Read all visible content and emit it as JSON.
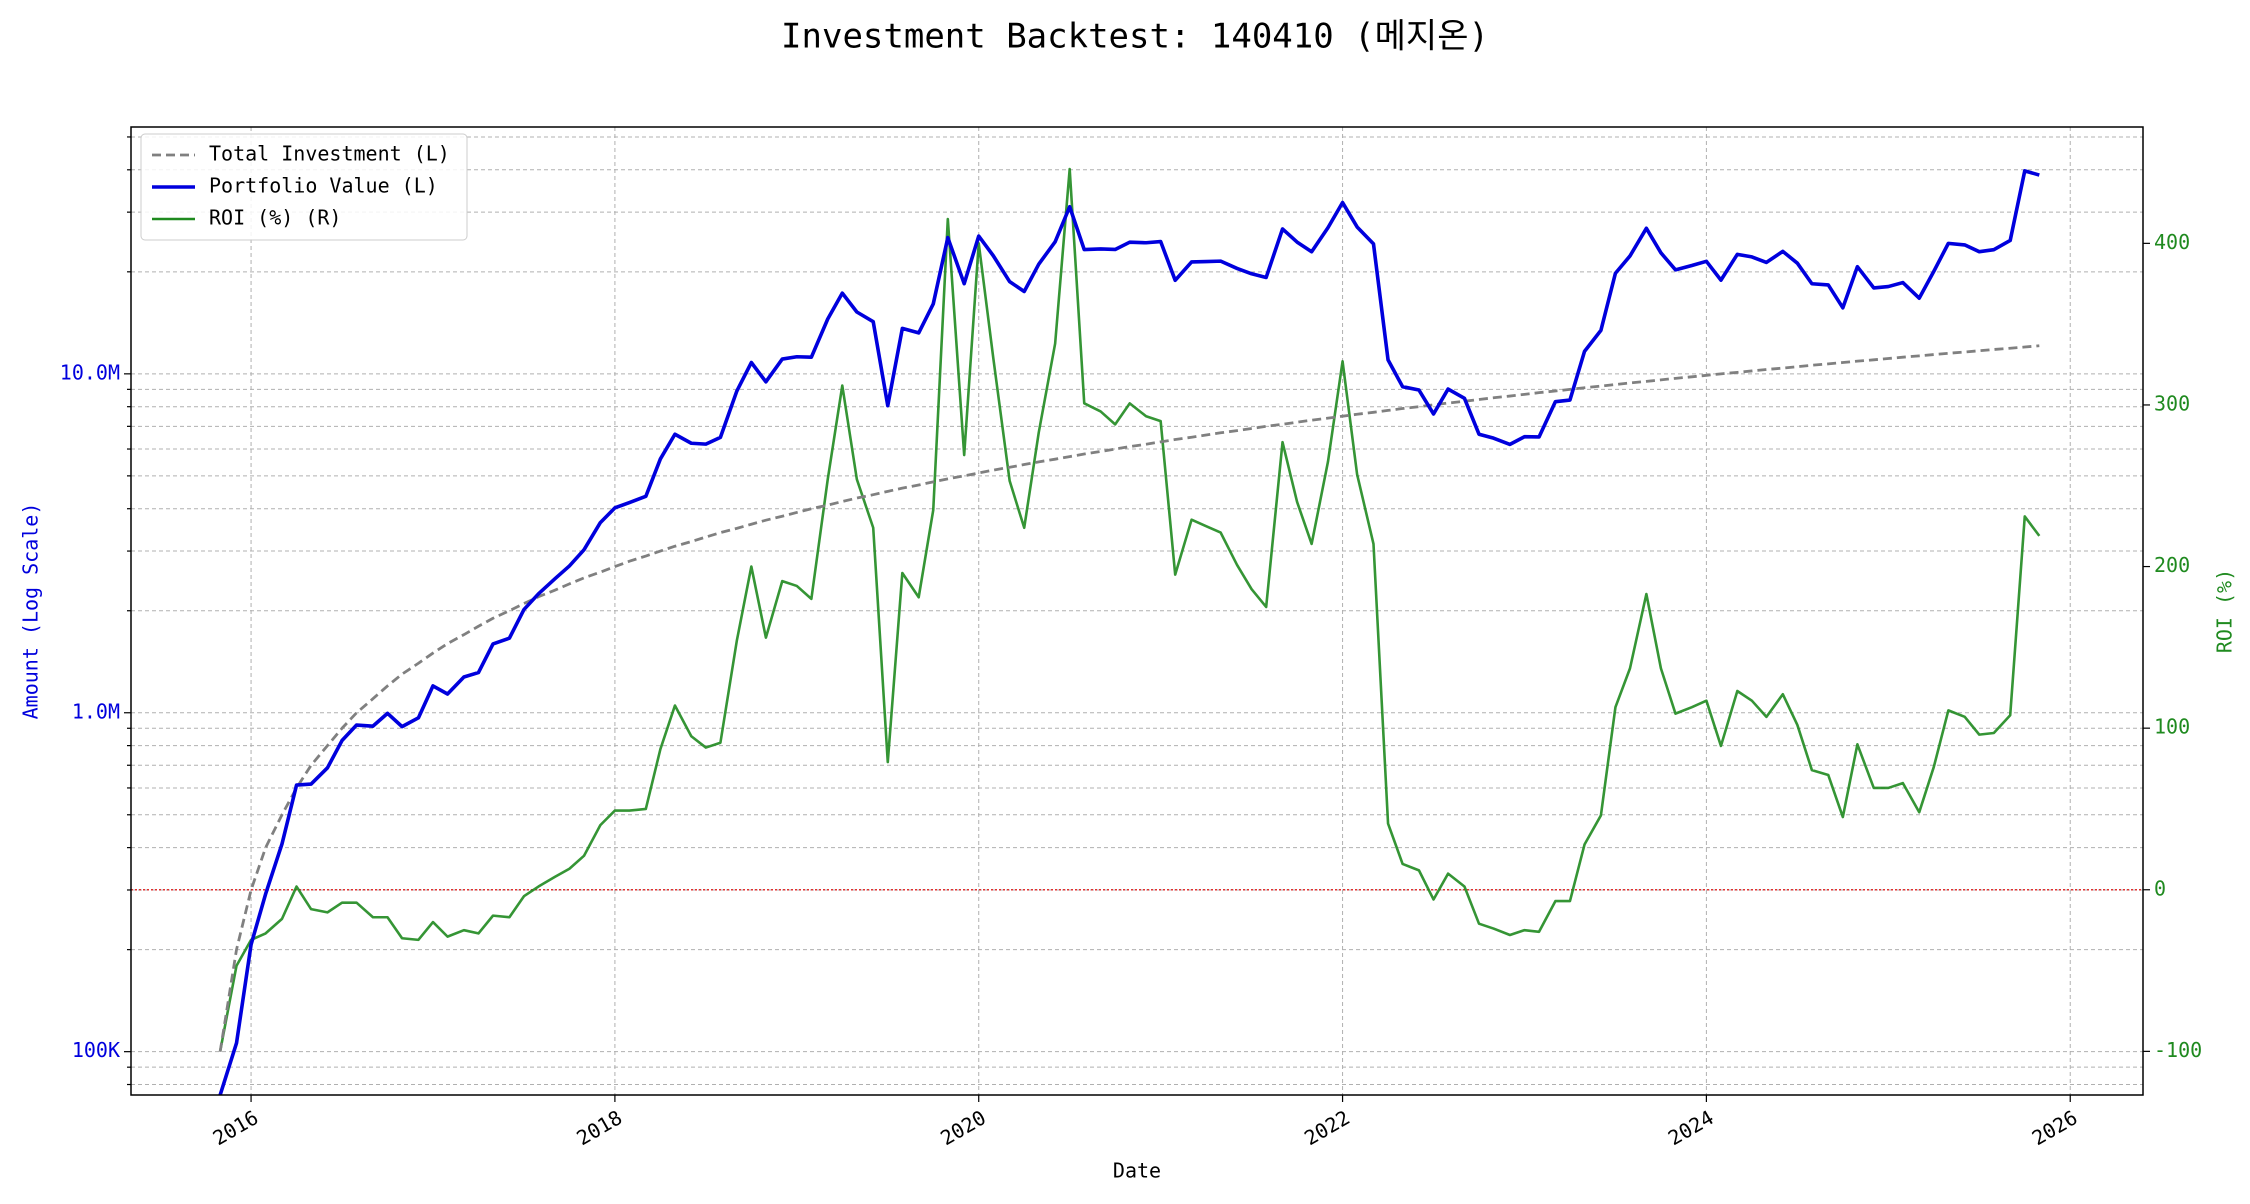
{
  "chart_data": {
    "type": "line",
    "title": "Investment Backtest: 140410 (메지온)",
    "xlabel": "Date",
    "ylabel": "Amount (Log Scale)",
    "y2label": "ROI (%)",
    "yscale": "log",
    "grid": true,
    "legend": "upper left",
    "xlim": [
      2015.34,
      2026.4
    ],
    "xticks": [
      2016,
      2018,
      2020,
      2022,
      2024,
      2026
    ],
    "ylim": [
      74500,
      53500000
    ],
    "yticks": [
      {
        "value": 100000,
        "label": "100K"
      },
      {
        "value": 1000000,
        "label": "1.0M"
      },
      {
        "value": 10000000,
        "label": "10.0M"
      }
    ],
    "yminorticks": [
      80000,
      90000,
      200000,
      300000,
      400000,
      500000,
      600000,
      700000,
      800000,
      900000,
      2000000,
      3000000,
      4000000,
      5000000,
      6000000,
      7000000,
      8000000,
      9000000,
      20000000,
      30000000,
      40000000,
      50000000
    ],
    "y2lim": [
      -127,
      472
    ],
    "y2ticks": [
      -100,
      0,
      100,
      200,
      300,
      400
    ],
    "hlines": [
      {
        "value": 0,
        "axis": "y2",
        "color": "#e03030"
      }
    ],
    "x": [
      2015.83,
      2015.92,
      2016,
      2016.08,
      2016.17,
      2016.25,
      2016.33,
      2016.42,
      2016.5,
      2016.58,
      2016.67,
      2016.75,
      2016.83,
      2016.92,
      2017,
      2017.08,
      2017.17,
      2017.25,
      2017.33,
      2017.42,
      2017.5,
      2017.58,
      2017.67,
      2017.75,
      2017.83,
      2017.92,
      2018,
      2018.08,
      2018.17,
      2018.25,
      2018.33,
      2018.42,
      2018.5,
      2018.58,
      2018.67,
      2018.75,
      2018.83,
      2018.92,
      2019,
      2019.08,
      2019.17,
      2019.25,
      2019.33,
      2019.42,
      2019.5,
      2019.58,
      2019.67,
      2019.75,
      2019.83,
      2019.92,
      2020,
      2020.08,
      2020.17,
      2020.25,
      2020.33,
      2020.42,
      2020.5,
      2020.58,
      2020.67,
      2020.75,
      2020.83,
      2020.92,
      2021,
      2021.08,
      2021.17,
      2021.25,
      2021.33,
      2021.42,
      2021.5,
      2021.58,
      2021.67,
      2021.75,
      2021.83,
      2021.92,
      2022,
      2022.08,
      2022.17,
      2022.25,
      2022.33,
      2022.42,
      2022.5,
      2022.58,
      2022.67,
      2022.75,
      2022.83,
      2022.92,
      2023,
      2023.08,
      2023.17,
      2023.25,
      2023.33,
      2023.42,
      2023.5,
      2023.58,
      2023.67,
      2023.75,
      2023.83,
      2023.92,
      2024,
      2024.08,
      2024.17,
      2024.25,
      2024.33,
      2024.42,
      2024.5,
      2024.58,
      2024.67,
      2024.75,
      2024.83,
      2024.92,
      2025,
      2025.08,
      2025.17,
      2025.25,
      2025.33,
      2025.42,
      2025.5,
      2025.58,
      2025.67,
      2025.75,
      2025.83
    ],
    "series": [
      {
        "name": "Total Investment (L)",
        "color": "#808080",
        "style": "dashed",
        "axis": "y",
        "values": [
          100000,
          200000,
          300000,
          400000,
          500000,
          600000,
          700000,
          800000,
          900000,
          1000000,
          1100000,
          1200000,
          1300000,
          1400000,
          1500000,
          1600000,
          1700000,
          1800000,
          1900000,
          2000000,
          2100000,
          2200000,
          2300000,
          2400000,
          2500000,
          2600000,
          2700000,
          2800000,
          2900000,
          3000000,
          3100000,
          3200000,
          3300000,
          3400000,
          3500000,
          3600000,
          3700000,
          3800000,
          3900000,
          4000000,
          4100000,
          4200000,
          4300000,
          4400000,
          4500000,
          4600000,
          4700000,
          4800000,
          4900000,
          5000000,
          5100000,
          5200000,
          5300000,
          5400000,
          5500000,
          5600000,
          5700000,
          5800000,
          5900000,
          6000000,
          6100000,
          6200000,
          6300000,
          6400000,
          6500000,
          6600000,
          6700000,
          6800000,
          6900000,
          7000000,
          7100000,
          7200000,
          7300000,
          7400000,
          7500000,
          7600000,
          7700000,
          7800000,
          7900000,
          8000000,
          8100000,
          8200000,
          8300000,
          8400000,
          8500000,
          8600000,
          8700000,
          8800000,
          8900000,
          9000000,
          9100000,
          9200000,
          9300000,
          9400000,
          9500000,
          9600000,
          9700000,
          9800000,
          9900000,
          10000000,
          10100000,
          10200000,
          10300000,
          10400000,
          10500000,
          10600000,
          10700000,
          10800000,
          10900000,
          11000000,
          11100000,
          11200000,
          11300000,
          11400000,
          11500000,
          11600000,
          11700000,
          11800000,
          11900000,
          12000000,
          12100000
        ]
      },
      {
        "name": "Portfolio Value (L)",
        "color": "#0000dd",
        "style": "solid",
        "axis": "y",
        "values": [
          0,
          106000,
          207000,
          292000,
          410000,
          612000,
          616000,
          688000,
          828000,
          920000,
          913000,
          996000,
          910000,
          966000,
          1200000,
          1136000,
          1275000,
          1314000,
          1596000,
          1660000,
          2016000,
          2244000,
          2484000,
          2712000,
          3025000,
          3640000,
          4023000,
          4172000,
          4350000,
          5610000,
          6634000,
          6240000,
          6204000,
          6494000,
          8890000,
          10800000,
          9472000,
          11058000,
          11232000,
          11200000,
          14514000,
          17304000,
          15222000,
          14256000,
          8055000,
          13616000,
          13207000,
          16080000,
          25235000,
          18450000,
          25500000,
          22308000,
          18709000,
          17496000,
          21065000,
          24528000,
          31122000,
          23258000,
          23364000,
          23280000,
          24461000,
          24366000,
          24570000,
          18880000,
          21385000,
          21450000,
          21507000,
          20468000,
          19734000,
          19250000,
          26767000,
          24480000,
          22922000,
          27010000,
          32025000,
          27132000,
          24178000,
          10998000,
          9164000,
          8960000,
          7614000,
          9020000,
          8466000,
          6636000,
          6460000,
          6192000,
          6525000,
          6512000,
          8277000,
          8370000,
          11648000,
          13432000,
          19809000,
          22278000,
          26885000,
          22752000,
          20273000,
          20874000,
          21483000,
          18900000,
          22523000,
          22134000,
          21321000,
          22984000,
          21210000,
          18444000,
          18297000,
          15660000,
          20710000,
          17930000,
          18093000,
          18592000,
          16724000,
          20064000,
          24265000,
          24012000,
          22932000,
          23246000,
          24752000,
          39720000,
          38599000
        ]
      },
      {
        "name": "ROI (%) (R)",
        "color": "#1f8a1f",
        "style": "solid",
        "axis": "y2",
        "values": [
          -100,
          -47,
          -31,
          -27,
          -18,
          2,
          -12,
          -14,
          -8,
          -8,
          -17,
          -17,
          -30,
          -31,
          -20,
          -29,
          -25,
          -27,
          -16,
          -17,
          -4,
          2,
          8,
          13,
          21,
          40,
          49,
          49,
          50,
          87,
          114,
          95,
          88,
          91,
          154,
          200,
          156,
          191,
          188,
          180,
          254,
          312,
          254,
          224,
          79,
          196,
          181,
          235,
          415,
          269,
          400,
          329,
          253,
          224,
          283,
          338,
          446,
          301,
          296,
          288,
          301,
          293,
          290,
          195,
          229,
          225,
          221,
          201,
          186,
          175,
          277,
          240,
          214,
          265,
          327,
          257,
          214,
          41,
          16,
          12,
          -6,
          10,
          2,
          -21,
          -24,
          -28,
          -25,
          -26,
          -7,
          -7,
          28,
          46,
          113,
          137,
          183,
          137,
          109,
          113,
          117,
          89,
          123,
          117,
          107,
          121,
          102,
          74,
          71,
          45,
          90,
          63,
          63,
          66,
          48,
          76,
          111,
          107,
          96,
          97,
          108,
          231,
          219
        ]
      }
    ]
  }
}
